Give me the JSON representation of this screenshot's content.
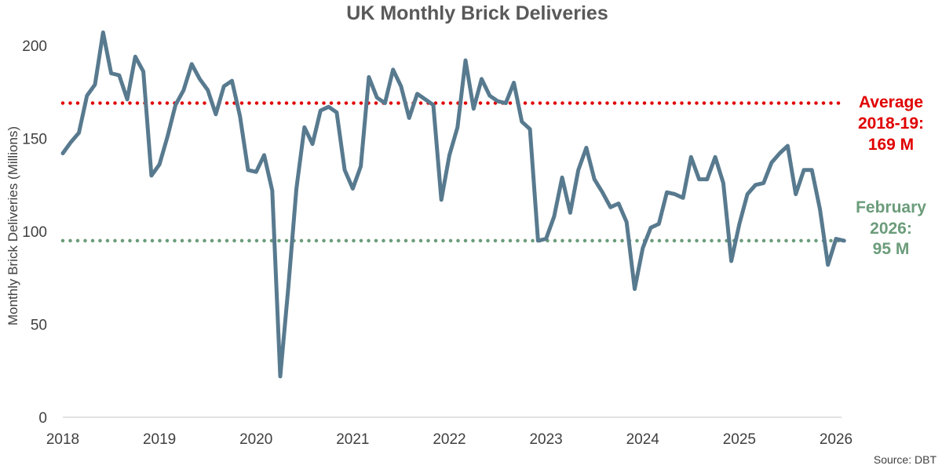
{
  "chart_data": {
    "type": "line",
    "title": "UK Monthly Brick Deliveries",
    "xlabel": "",
    "ylabel": "Monthly Brick Deliveries (Millions)",
    "ylim": [
      0,
      210
    ],
    "yticks": [
      0,
      50,
      100,
      150,
      200
    ],
    "xticks": [
      "2018",
      "2019",
      "2020",
      "2021",
      "2022",
      "2023",
      "2024",
      "2025",
      "2026"
    ],
    "start": "2018-01",
    "series": [
      {
        "name": "Monthly Brick Deliveries",
        "color": "#587A8F",
        "values": [
          142,
          148,
          153,
          173,
          179,
          207,
          185,
          184,
          171,
          194,
          186,
          130,
          136,
          151,
          168,
          176,
          190,
          182,
          176,
          163,
          178,
          181,
          162,
          133,
          132,
          141,
          122,
          22,
          70,
          123,
          156,
          147,
          165,
          167,
          164,
          133,
          123,
          135,
          183,
          172,
          169,
          187,
          178,
          161,
          174,
          171,
          168,
          117,
          141,
          156,
          192,
          166,
          182,
          173,
          170,
          169,
          180,
          159,
          155,
          95,
          96,
          108,
          129,
          110,
          133,
          145,
          128,
          121,
          113,
          115,
          105,
          69,
          91,
          102,
          104,
          121,
          120,
          118,
          140,
          128,
          128,
          140,
          126,
          84,
          104,
          120,
          125,
          126,
          137,
          142,
          146,
          120,
          133,
          133,
          112,
          82,
          96,
          95
        ]
      }
    ],
    "reference_lines": [
      {
        "name": "average",
        "value": 169,
        "color": "#E00000",
        "label": [
          "Average",
          "2018-19:",
          "169 M"
        ]
      },
      {
        "name": "latest",
        "value": 95,
        "color": "#6B9C7A",
        "label": [
          "February",
          "2026:",
          "95 M"
        ]
      }
    ],
    "source": "Source: DBT"
  }
}
